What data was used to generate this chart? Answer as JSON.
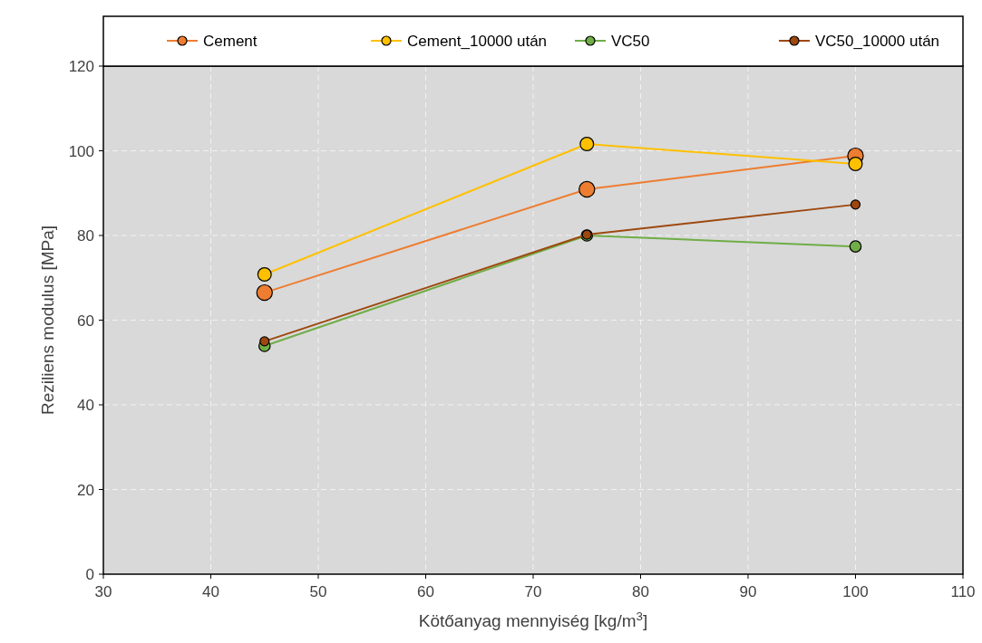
{
  "chart_data": {
    "type": "line",
    "xlabel": "Kötőanyag mennyiség [kg/m$^{3}$]",
    "ylabel": "Reziliens modulus [MPa]",
    "x": [
      45,
      75,
      100
    ],
    "series": [
      {
        "name": "Cement",
        "color": "#ed7d31",
        "values": [
          66.5,
          90.9,
          98.8
        ]
      },
      {
        "name": "Cement_10000 után",
        "color": "#ffc000",
        "values": [
          70.8,
          101.6,
          96.9
        ]
      },
      {
        "name": "VC50",
        "color": "#70ad47",
        "values": [
          53.9,
          80.0,
          77.4
        ]
      },
      {
        "name": "VC50_10000 után",
        "color": "#9e480e",
        "values": [
          55.0,
          80.2,
          87.3
        ]
      }
    ],
    "xlim": [
      30,
      110
    ],
    "xticks": [
      30,
      40,
      50,
      60,
      70,
      80,
      90,
      100,
      110
    ],
    "ylim": [
      0,
      120
    ],
    "yticks": [
      0,
      20,
      40,
      60,
      80,
      100,
      120
    ],
    "grid": true,
    "legend": "top",
    "marker": "circle",
    "line_style": "solid"
  }
}
